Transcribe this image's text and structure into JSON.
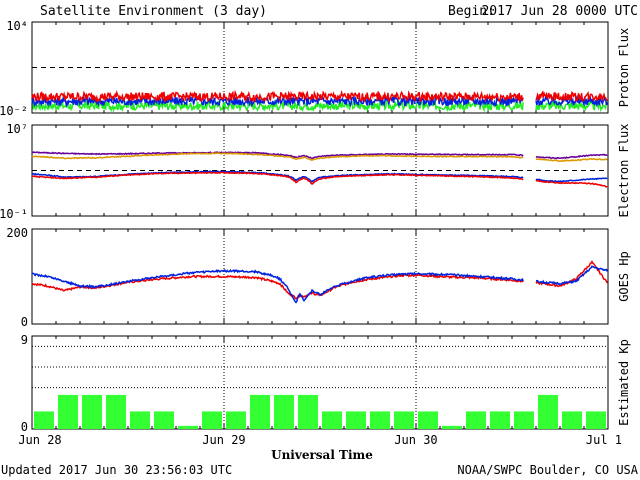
{
  "header": {
    "title": "Satellite Environment (3 day)",
    "begin_label": "Begin:",
    "begin_value": "2017 Jun 28 0000 UTC"
  },
  "footer": {
    "updated": "Updated 2017 Jun 30 23:56:03 UTC",
    "credit": "NOAA/SWPC Boulder, CO USA"
  },
  "x_axis": {
    "label": "Universal Time",
    "ticks": [
      "Jun 28",
      "Jun 29",
      "Jun 30",
      "Jul 1"
    ]
  },
  "colors": {
    "red": "#ee0000",
    "blue": "#0022dd",
    "green": "#22ee22",
    "purple": "#660099",
    "orange": "#dd9900",
    "kp_bar": "#33ff33"
  },
  "chart_data": [
    {
      "type": "line",
      "ylabel": "Proton Flux",
      "yscale": "log",
      "ylim": [
        0.01,
        10000
      ],
      "y_tick_labels": [
        "10⁴",
        "10⁻²"
      ],
      "threshold": 10,
      "data_gap_hours": [
        61.5,
        63.0
      ],
      "series": [
        {
          "color": "red",
          "level": 0.12
        },
        {
          "color": "blue",
          "level": 0.06
        },
        {
          "color": "green",
          "level": 0.03
        }
      ]
    },
    {
      "type": "line",
      "ylabel": "Electron Flux",
      "yscale": "log",
      "ylim": [
        0.1,
        10000000
      ],
      "y_tick_labels": [
        "10⁷",
        "10⁻¹"
      ],
      "threshold": 1000,
      "data_gap_hours": [
        61.5,
        63.0
      ],
      "x_hours": [
        0,
        4,
        8,
        12,
        16,
        20,
        24,
        28,
        30,
        32,
        33,
        34,
        35,
        36,
        38,
        40,
        42,
        44,
        46,
        48,
        52,
        56,
        60,
        64,
        66,
        68,
        70,
        72
      ],
      "series": [
        {
          "color": "purple",
          "values": [
            40000,
            32000,
            28000,
            30000,
            34000,
            36000,
            38000,
            36000,
            28000,
            22000,
            14000,
            20000,
            12000,
            18000,
            22000,
            24000,
            26000,
            27000,
            28000,
            27000,
            26000,
            25000,
            25000,
            14000,
            12000,
            16000,
            22000,
            24000
          ]
        },
        {
          "color": "orange",
          "values": [
            18000,
            12000,
            13000,
            18000,
            25000,
            30000,
            32000,
            26000,
            20000,
            16000,
            10000,
            14000,
            8000,
            12000,
            16000,
            18000,
            20000,
            20000,
            19000,
            18000,
            17000,
            17000,
            16000,
            9000,
            7000,
            8000,
            10000,
            9000
          ]
        },
        {
          "color": "blue",
          "values": [
            500,
            260,
            300,
            450,
            650,
            750,
            800,
            650,
            500,
            350,
            130,
            300,
            100,
            250,
            350,
            400,
            450,
            500,
            500,
            450,
            400,
            350,
            300,
            130,
            110,
            140,
            180,
            200
          ]
        },
        {
          "color": "red",
          "values": [
            300,
            200,
            260,
            400,
            550,
            600,
            650,
            550,
            420,
            280,
            80,
            220,
            60,
            180,
            280,
            330,
            380,
            420,
            420,
            380,
            330,
            280,
            220,
            100,
            80,
            80,
            70,
            35
          ]
        }
      ]
    },
    {
      "type": "line",
      "ylabel": "GOES Hp",
      "ylim": [
        0,
        200
      ],
      "y_tick_labels": [
        "200",
        "0"
      ],
      "data_gap_hours": [
        61.5,
        63.0
      ],
      "x_hours": [
        0,
        2,
        4,
        6,
        8,
        12,
        16,
        20,
        24,
        28,
        30,
        31,
        32,
        33,
        33.5,
        34,
        35,
        36,
        38,
        40,
        42,
        44,
        46,
        48,
        52,
        56,
        60,
        64,
        66,
        68,
        70,
        72
      ],
      "series": [
        {
          "color": "blue",
          "values": [
            105,
            100,
            90,
            80,
            78,
            90,
            100,
            108,
            112,
            110,
            102,
            95,
            75,
            45,
            65,
            50,
            70,
            62,
            80,
            90,
            98,
            102,
            105,
            106,
            104,
            100,
            95,
            88,
            85,
            90,
            120,
            112
          ]
        },
        {
          "color": "red",
          "values": [
            85,
            80,
            70,
            78,
            76,
            88,
            95,
            100,
            100,
            98,
            90,
            85,
            65,
            55,
            60,
            58,
            65,
            60,
            78,
            88,
            94,
            98,
            102,
            103,
            99,
            97,
            92,
            85,
            80,
            95,
            130,
            85
          ]
        }
      ]
    },
    {
      "type": "bar",
      "ylabel": "Estimated Kp",
      "ylim": [
        0,
        9
      ],
      "y_tick_labels": [
        "9",
        "0"
      ],
      "bar_width_hours": 3,
      "values": [
        1.7,
        3.3,
        3.3,
        3.3,
        1.7,
        1.7,
        0.3,
        1.7,
        1.7,
        3.3,
        3.3,
        3.3,
        1.7,
        1.7,
        1.7,
        1.7,
        1.7,
        0.3,
        1.7,
        1.7,
        1.7,
        3.3,
        1.7,
        1.7
      ]
    }
  ]
}
